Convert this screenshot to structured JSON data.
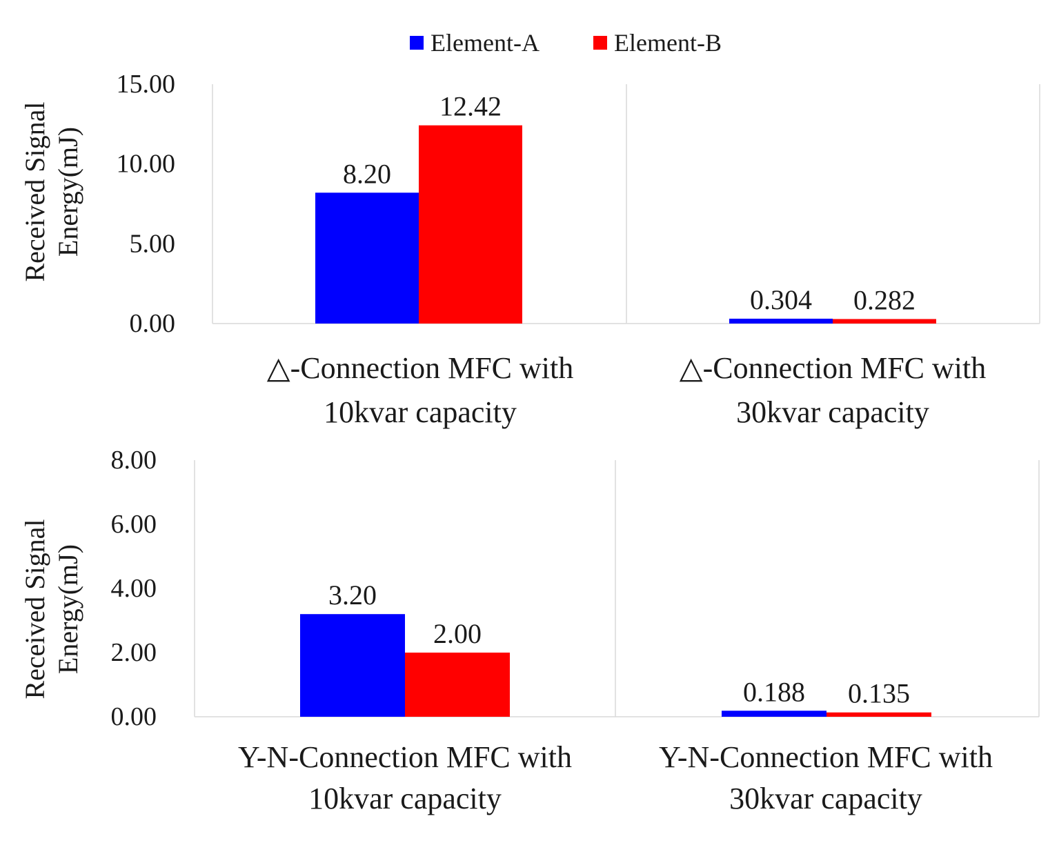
{
  "legend": [
    {
      "name": "Element-A",
      "color": "#0000ff"
    },
    {
      "name": "Element-B",
      "color": "#ff0000"
    }
  ],
  "chart_data": [
    {
      "type": "bar",
      "ylabel_lines": [
        "Received Signal",
        "Energy(mJ)"
      ],
      "ylim": [
        0,
        15
      ],
      "yticks": [
        "0.00",
        "5.00",
        "10.00",
        "15.00"
      ],
      "ytick_values": [
        0,
        5,
        10,
        15
      ],
      "categories": [
        [
          "△-Connection MFC with",
          "10kvar capacity"
        ],
        [
          "△-Connection MFC with",
          "30kvar capacity"
        ]
      ],
      "series": [
        {
          "name": "Element-A",
          "values": [
            8.2,
            0.304
          ],
          "labels": [
            "8.20",
            "0.304"
          ]
        },
        {
          "name": "Element-B",
          "values": [
            12.42,
            0.282
          ],
          "labels": [
            "12.42",
            "0.282"
          ]
        }
      ]
    },
    {
      "type": "bar",
      "ylabel_lines": [
        "Received Signal",
        "Energy(mJ)"
      ],
      "ylim": [
        0,
        8
      ],
      "yticks": [
        "0.00",
        "2.00",
        "4.00",
        "6.00",
        "8.00"
      ],
      "ytick_values": [
        0,
        2,
        4,
        6,
        8
      ],
      "categories": [
        [
          "Y-N-Connection MFC with",
          "10kvar capacity"
        ],
        [
          "Y-N-Connection MFC with",
          "30kvar capacity"
        ]
      ],
      "series": [
        {
          "name": "Element-A",
          "values": [
            3.2,
            0.188
          ],
          "labels": [
            "3.20",
            "0.188"
          ]
        },
        {
          "name": "Element-B",
          "values": [
            2.0,
            0.135
          ],
          "labels": [
            "2.00",
            "0.135"
          ]
        }
      ]
    }
  ]
}
